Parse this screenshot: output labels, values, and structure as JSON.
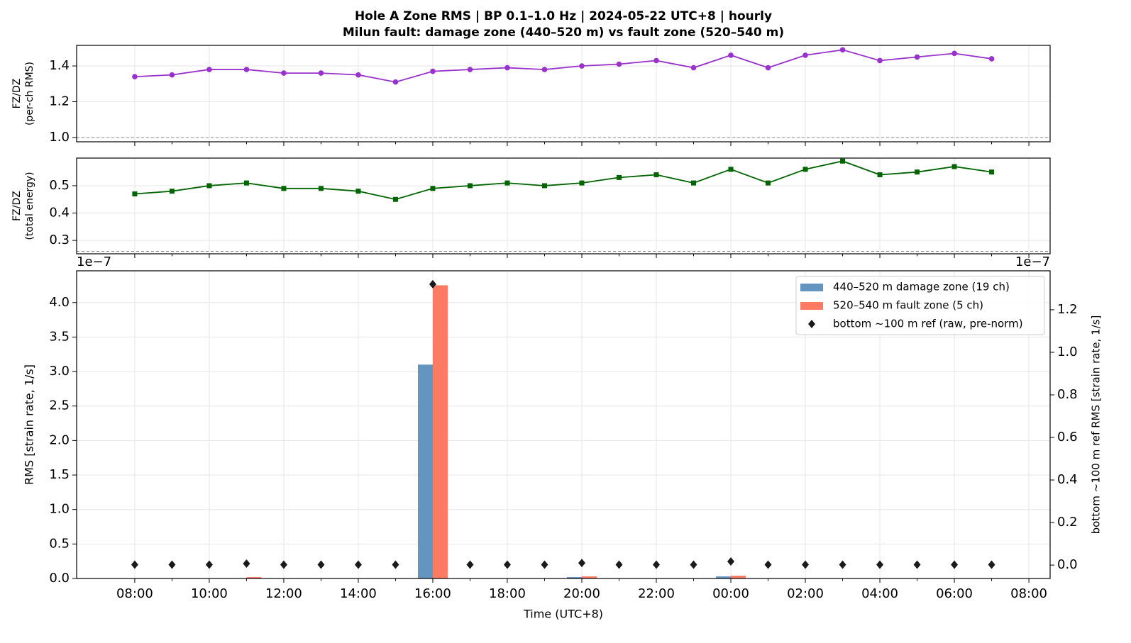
{
  "chart_data": [
    {
      "type": "line",
      "title": [
        "Hole A Zone RMS  |  BP 0.1–1.0 Hz  |  2024-05-22 UTC+8  |  hourly",
        "Milun fault: damage zone (440–520 m) vs fault zone (520–540 m)"
      ],
      "ylabel": [
        "FZ/DZ",
        "(per-ch RMS)"
      ],
      "x": [
        0,
        1,
        2,
        3,
        4,
        5,
        6,
        7,
        8,
        9,
        10,
        11,
        12,
        13,
        14,
        15,
        16,
        17,
        18,
        19,
        20,
        21,
        22,
        23
      ],
      "series": [
        {
          "color": "#9932cc",
          "marker": "circle",
          "values": [
            1.34,
            1.35,
            1.38,
            1.38,
            1.36,
            1.36,
            1.35,
            1.31,
            1.37,
            1.38,
            1.39,
            1.38,
            1.4,
            1.41,
            1.43,
            1.39,
            1.46,
            1.39,
            1.46,
            1.49,
            1.43,
            1.45,
            1.47,
            1.44
          ]
        }
      ],
      "hline": 1.0,
      "ylim": [
        0.976,
        1.515
      ],
      "yticks": [
        {
          "value": 1.0,
          "label": "1.0"
        },
        {
          "value": 1.2,
          "label": "1.2"
        },
        {
          "value": 1.4,
          "label": "1.4"
        }
      ],
      "grid": true
    },
    {
      "type": "line",
      "ylabel": [
        "FZ/DZ",
        "(total energy)"
      ],
      "x": [
        0,
        1,
        2,
        3,
        4,
        5,
        6,
        7,
        8,
        9,
        10,
        11,
        12,
        13,
        14,
        15,
        16,
        17,
        18,
        19,
        20,
        21,
        22,
        23
      ],
      "series": [
        {
          "color": "#006400",
          "marker": "square",
          "values": [
            0.47,
            0.48,
            0.5,
            0.51,
            0.49,
            0.49,
            0.48,
            0.45,
            0.49,
            0.5,
            0.51,
            0.5,
            0.51,
            0.53,
            0.54,
            0.51,
            0.56,
            0.51,
            0.56,
            0.59,
            0.54,
            0.55,
            0.57,
            0.55
          ]
        }
      ],
      "hline": 0.26,
      "ylim": [
        0.251,
        0.601
      ],
      "yticks": [
        0.3,
        0.4,
        0.5
      ],
      "grid": true
    },
    {
      "type": "bar",
      "xlabel": "Time (UTC+8)",
      "ylabel": "RMS  [strain rate, 1/s]",
      "y2label": "bottom ~100 m ref RMS  [strain rate, 1/s]",
      "offset_text": "1e−7",
      "y2_offset_text": "1e−7",
      "x": [
        0,
        1,
        2,
        3,
        4,
        5,
        6,
        7,
        8,
        9,
        10,
        11,
        12,
        13,
        14,
        15,
        16,
        17,
        18,
        19,
        20,
        21,
        22,
        23
      ],
      "series": [
        {
          "name": "440–520 m  damage zone (19 ch)",
          "color": "#6495c0",
          "values": [
            0.005,
            0.005,
            0.005,
            0.005,
            0.005,
            0.005,
            0.005,
            0.005,
            3.1,
            0.005,
            0.005,
            0.005,
            0.02,
            0.005,
            0.005,
            0.005,
            0.03,
            0.005,
            0.005,
            0.005,
            0.005,
            0.005,
            0.005,
            0.005
          ]
        },
        {
          "name": "520–540 m  fault zone (5 ch)",
          "color": "#fd7b63",
          "values": [
            0.005,
            0.005,
            0.005,
            0.02,
            0.005,
            0.005,
            0.005,
            0.005,
            4.25,
            0.005,
            0.005,
            0.005,
            0.03,
            0.005,
            0.005,
            0.005,
            0.04,
            0.005,
            0.005,
            0.005,
            0.005,
            0.005,
            0.005,
            0.005
          ]
        },
        {
          "name": "bottom ~100 m ref (raw, pre-norm)",
          "color": "#1a1a1a",
          "type": "scatter",
          "axis": "y2",
          "values": [
            0.002,
            0.002,
            0.002,
            0.007,
            0.002,
            0.002,
            0.002,
            0.002,
            1.32,
            0.002,
            0.002,
            0.002,
            0.01,
            0.002,
            0.002,
            0.002,
            0.017,
            0.002,
            0.002,
            0.002,
            0.002,
            0.002,
            0.002,
            0.002
          ]
        }
      ],
      "ylim": [
        0,
        4.46
      ],
      "yticks": [
        {
          "value": 0,
          "label": "0.0"
        },
        0.5,
        {
          "value": 1,
          "label": "1.0"
        },
        1.5,
        {
          "value": 2,
          "label": "2.0"
        },
        2.5,
        {
          "value": 3,
          "label": "3.0"
        },
        3.5,
        {
          "value": 4,
          "label": "4.0"
        }
      ],
      "y2lim": [
        -0.063,
        1.383
      ],
      "y2ticks": [
        {
          "value": 0,
          "label": "0.0"
        },
        0.2,
        0.4,
        0.6,
        0.8,
        {
          "value": 1,
          "label": "1.0"
        },
        1.2
      ],
      "xlim": [
        -1.56,
        24.57
      ],
      "xticks": [
        {
          "value": 0,
          "label": "08:00"
        },
        {
          "value": 2,
          "label": "10:00"
        },
        {
          "value": 4,
          "label": "12:00"
        },
        {
          "value": 6,
          "label": "14:00"
        },
        {
          "value": 8,
          "label": "16:00"
        },
        {
          "value": 10,
          "label": "18:00"
        },
        {
          "value": 12,
          "label": "20:00"
        },
        {
          "value": 14,
          "label": "22:00"
        },
        {
          "value": 16,
          "label": "00:00"
        },
        {
          "value": 18,
          "label": "02:00"
        },
        {
          "value": 20,
          "label": "04:00"
        },
        {
          "value": 22,
          "label": "06:00"
        },
        {
          "value": 24,
          "label": "08:00"
        }
      ],
      "xminorticks": [
        1,
        3,
        5,
        7,
        9,
        11,
        13,
        15,
        17,
        19,
        21,
        23
      ],
      "legend": "upper right",
      "grid": true
    }
  ]
}
